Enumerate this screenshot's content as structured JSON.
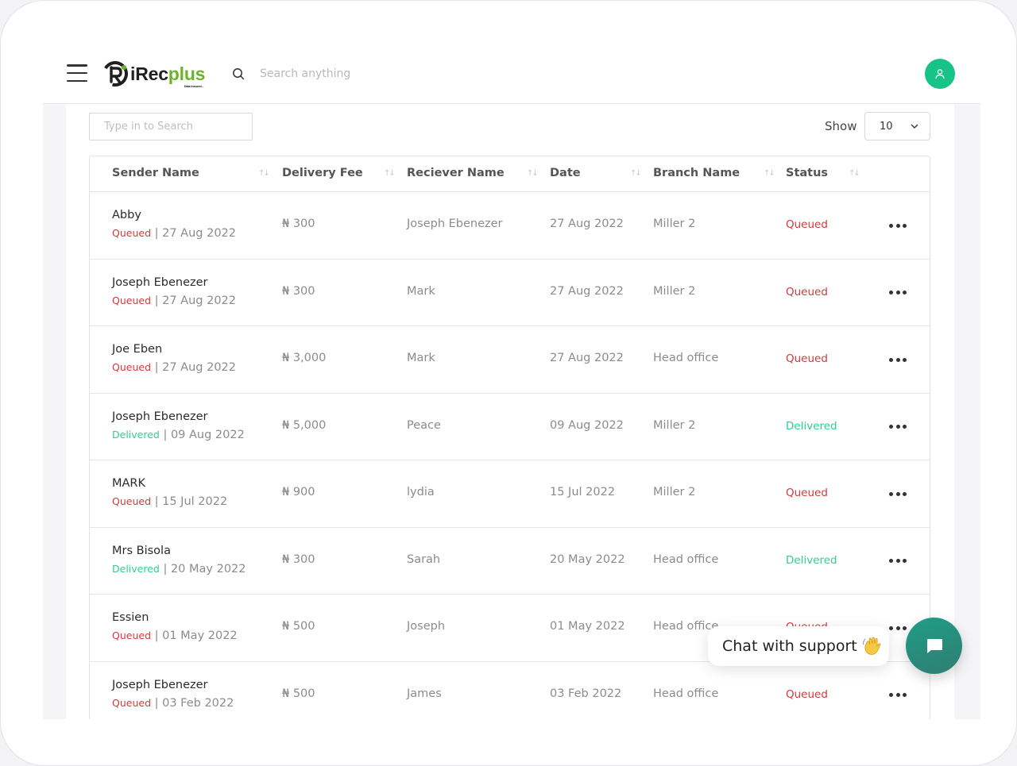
{
  "app": {
    "logo_prefix": "iRec",
    "logo_suffix": "plus",
    "tagline": "Data Insured...",
    "search_placeholder": "Search anything"
  },
  "toolbar": {
    "table_search_placeholder": "Type in to Search",
    "show_label": "Show",
    "page_size": "10"
  },
  "columns": [
    "Sender Name",
    "Delivery Fee",
    "Reciever Name",
    "Date",
    "Branch Name",
    "Status"
  ],
  "rows": [
    {
      "sender": "Abby",
      "status": "Queued",
      "date": "27 Aug 2022",
      "fee": "₦ 300",
      "receiver": "Joseph Ebenezer",
      "branch": "Miller 2"
    },
    {
      "sender": "Joseph Ebenezer",
      "status": "Queued",
      "date": "27 Aug 2022",
      "fee": "₦ 300",
      "receiver": "Mark",
      "branch": "Miller 2"
    },
    {
      "sender": "Joe Eben",
      "status": "Queued",
      "date": "27 Aug 2022",
      "fee": "₦ 3,000",
      "receiver": "Mark",
      "branch": "Head office"
    },
    {
      "sender": "Joseph Ebenezer",
      "status": "Delivered",
      "date": "09 Aug 2022",
      "fee": "₦ 5,000",
      "receiver": "Peace",
      "branch": "Miller 2"
    },
    {
      "sender": "MARK",
      "status": "Queued",
      "date": "15 Jul 2022",
      "fee": "₦ 900",
      "receiver": "lydia",
      "branch": "Miller 2"
    },
    {
      "sender": "Mrs Bisola",
      "status": "Delivered",
      "date": "20 May 2022",
      "fee": "₦ 300",
      "receiver": "Sarah",
      "branch": "Head office"
    },
    {
      "sender": "Essien",
      "status": "Queued",
      "date": "01 May 2022",
      "fee": "₦ 500",
      "receiver": "Joseph",
      "branch": "Head office"
    },
    {
      "sender": "Joseph Ebenezer",
      "status": "Queued",
      "date": "03 Feb 2022",
      "fee": "₦ 500",
      "receiver": "James",
      "branch": "Head office"
    }
  ],
  "chat": {
    "label": "Chat with support"
  },
  "colors": {
    "accent": "#17c386",
    "queued": "#d23a3a",
    "delivered": "#2ecf8f",
    "logo_green": "#6bb42a",
    "chat_button": "#1e9e87"
  },
  "icons": [
    "menu-icon",
    "search-icon",
    "user-icon",
    "sort-icon",
    "chevron-down-icon",
    "more-icon",
    "chat-icon",
    "waving-hand-icon"
  ]
}
